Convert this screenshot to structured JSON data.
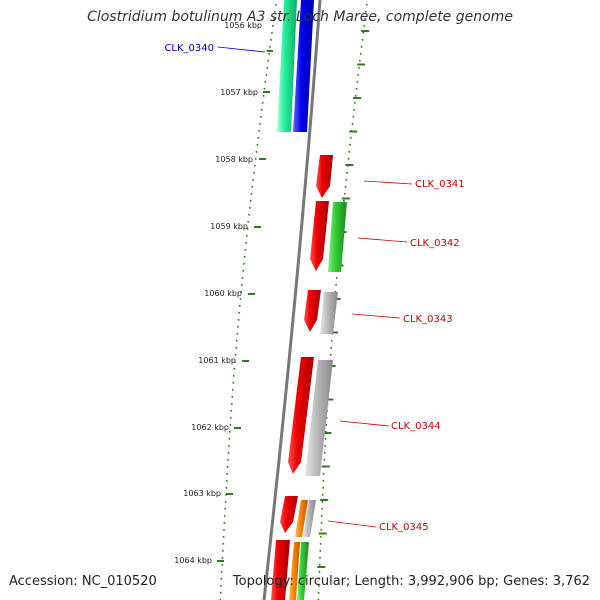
{
  "title": "Clostridium botulinum A3 str. Loch Maree, complete genome",
  "accession": "Accession: NC_010520",
  "topology": "Topology: circular; Length: 3,992,906 bp; Genes: 3,762",
  "kbp_labels": [
    "1056 kbp",
    "1057 kbp",
    "1058 kbp",
    "1059 kbp",
    "1060 kbp",
    "1061 kbp",
    "1062 kbp",
    "1063 kbp",
    "1064 kbp"
  ],
  "gene_labels": [
    {
      "name": "CLK_0340",
      "color": "#0000cc"
    },
    {
      "name": "CLK_0341",
      "color": "#cc0000"
    },
    {
      "name": "CLK_0342",
      "color": "#cc0000"
    },
    {
      "name": "CLK_0343",
      "color": "#cc0000"
    },
    {
      "name": "CLK_0344",
      "color": "#cc0000"
    },
    {
      "name": "CLK_0345",
      "color": "#cc0000"
    }
  ],
  "colors": {
    "backbone": "#777777",
    "tick": "#2e7d1e",
    "cds": "#ee0000",
    "cog_blue": "#0000ee",
    "cog_teal": "#22ee99",
    "cog_green": "#33cc33",
    "cog_grey": "#bbbbbb",
    "cog_orange": "#ff8800"
  }
}
